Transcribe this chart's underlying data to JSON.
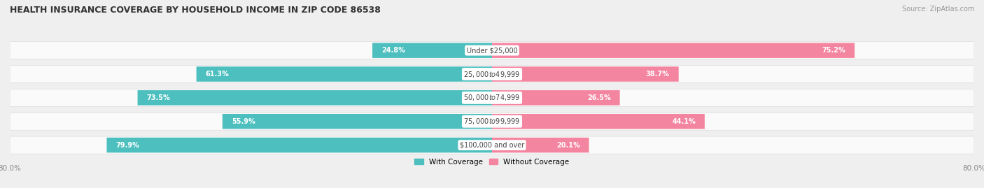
{
  "title": "HEALTH INSURANCE COVERAGE BY HOUSEHOLD INCOME IN ZIP CODE 86538",
  "source": "Source: ZipAtlas.com",
  "categories": [
    "Under $25,000",
    "$25,000 to $49,999",
    "$50,000 to $74,999",
    "$75,000 to $99,999",
    "$100,000 and over"
  ],
  "with_coverage": [
    24.8,
    61.3,
    73.5,
    55.9,
    79.9
  ],
  "without_coverage": [
    75.2,
    38.7,
    26.5,
    44.1,
    20.1
  ],
  "color_with": "#4DBFBF",
  "color_without": "#F485A0",
  "bar_height": 0.62,
  "xlim_left": -80,
  "xlim_right": 80,
  "x_left_label": "80.0%",
  "x_right_label": "80.0%",
  "bg_color": "#EFEFEF",
  "row_bg_color": "#FAFAFA",
  "row_border_color": "#DDDDDD"
}
